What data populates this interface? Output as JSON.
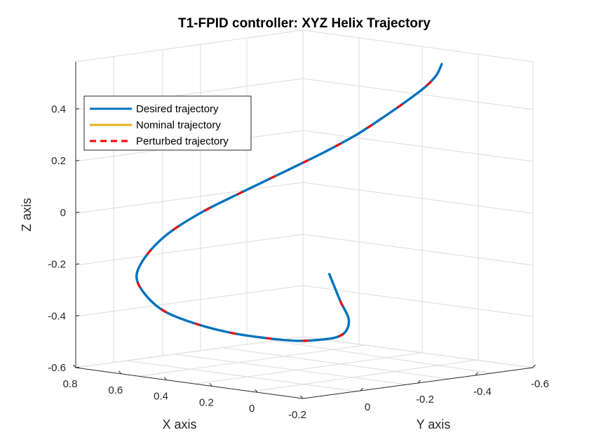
{
  "chart_data": {
    "type": "line",
    "title": "T1-FPID controller: XYZ Helix Trajectory",
    "xlabel": "X axis",
    "ylabel": "Y axis",
    "zlabel": "Z axis",
    "xlim": [
      -0.2,
      0.8
    ],
    "ylim": [
      -0.6,
      0.2
    ],
    "zlim": [
      -0.6,
      0.6
    ],
    "xticks": [
      {
        "value": 0.8,
        "label": "0.8"
      },
      {
        "value": 0.6,
        "label": "0.6"
      },
      {
        "value": 0.4,
        "label": "0.4"
      },
      {
        "value": 0.2,
        "label": "0.2"
      },
      {
        "value": 0.0,
        "label": "0"
      },
      {
        "value": -0.2,
        "label": "-0.2"
      }
    ],
    "yticks": [
      {
        "value": 0.0,
        "label": "0"
      },
      {
        "value": -0.2,
        "label": "-0.2"
      },
      {
        "value": -0.4,
        "label": "-0.4"
      },
      {
        "value": -0.6,
        "label": "-0.6"
      }
    ],
    "zticks": [
      {
        "value": 0.4,
        "label": "0.4"
      },
      {
        "value": 0.2,
        "label": "0.2"
      },
      {
        "value": 0.0,
        "label": "0"
      },
      {
        "value": -0.2,
        "label": "-0.2"
      },
      {
        "value": -0.4,
        "label": "-0.4"
      },
      {
        "value": -0.6,
        "label": "-0.6"
      }
    ],
    "grid": true,
    "legend_position": "upper-left",
    "series": [
      {
        "name": "Desired trajectory",
        "color": "#0072BD",
        "style": "solid"
      },
      {
        "name": "Nominal trajectory",
        "color": "#EDB120",
        "style": "solid"
      },
      {
        "name": "Perturbed trajectory",
        "color": "#FF0000",
        "style": "dashed"
      }
    ],
    "trajectory": {
      "x": [
        0.0,
        0.04,
        0.08,
        0.14,
        0.22,
        0.3,
        0.38,
        0.46,
        0.52,
        0.57,
        0.6,
        0.6,
        0.57,
        0.5,
        0.42,
        0.32,
        0.22,
        0.13,
        0.06,
        0.02,
        0.0,
        0.0,
        0.02,
        0.06,
        0.1
      ],
      "y": [
        -0.05,
        -0.12,
        -0.18,
        -0.22,
        -0.25,
        -0.25,
        -0.23,
        -0.18,
        -0.12,
        -0.04,
        0.05,
        0.12,
        0.17,
        0.19,
        0.18,
        0.14,
        0.08,
        0.0,
        -0.08,
        -0.16,
        -0.24,
        -0.32,
        -0.4,
        -0.47,
        -0.52
      ],
      "z": [
        -0.18,
        -0.3,
        -0.38,
        -0.44,
        -0.48,
        -0.5,
        -0.51,
        -0.5,
        -0.48,
        -0.44,
        -0.38,
        -0.3,
        -0.22,
        -0.13,
        -0.04,
        0.05,
        0.13,
        0.21,
        0.28,
        0.34,
        0.4,
        0.45,
        0.49,
        0.52,
        0.55
      ]
    }
  }
}
